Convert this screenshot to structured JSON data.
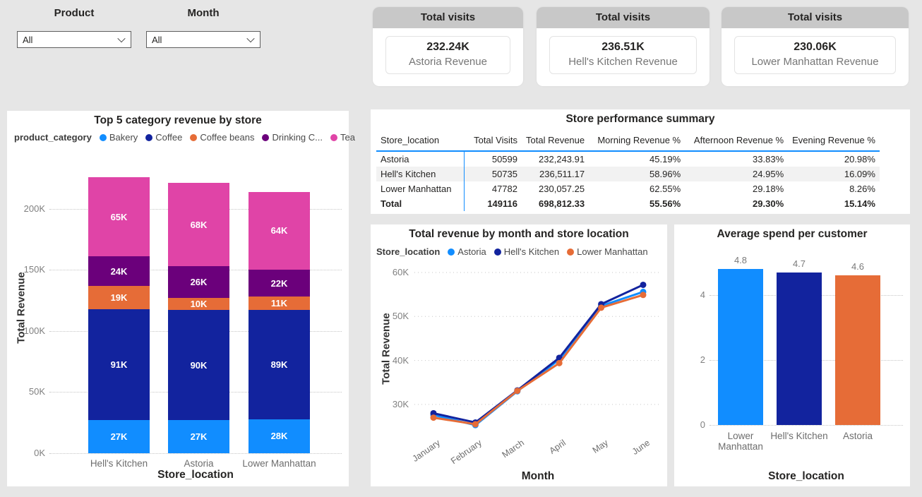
{
  "filters": {
    "product": {
      "label": "Product",
      "value": "All"
    },
    "month": {
      "label": "Month",
      "value": "All"
    }
  },
  "kpi_cards": [
    {
      "header": "Total visits",
      "value": "232.24K",
      "label": "Astoria Revenue"
    },
    {
      "header": "Total visits",
      "value": "236.51K",
      "label": "Hell's Kitchen Revenue"
    },
    {
      "header": "Total visits",
      "value": "230.06K",
      "label": "Lower Manhattan Revenue"
    }
  ],
  "table": {
    "title": "Store performance summary",
    "columns": [
      "Store_location",
      "Total Visits",
      "Total Revenue",
      "Morning Revenue %",
      "Afternoon Revenue %",
      "Evening Revenue %"
    ],
    "rows": [
      [
        "Astoria",
        "50599",
        "232,243.91",
        "45.19%",
        "33.83%",
        "20.98%"
      ],
      [
        "Hell's Kitchen",
        "50735",
        "236,511.17",
        "58.96%",
        "24.95%",
        "16.09%"
      ],
      [
        "Lower Manhattan",
        "47782",
        "230,057.25",
        "62.55%",
        "29.18%",
        "8.26%"
      ]
    ],
    "total_row": [
      "Total",
      "149116",
      "698,812.33",
      "55.56%",
      "29.30%",
      "15.14%"
    ]
  },
  "colors": {
    "canvas_background": "#E6E6E6",
    "panel_background": "#FFFFFF",
    "kpi_header_gray": "#C8C8C8",
    "table_accent_blue": "#118DFF",
    "palette_blue": "#118DFF",
    "palette_navy": "#12239E",
    "palette_orange": "#E66C37",
    "palette_purple": "#6B007B",
    "palette_pink": "#E044A7"
  },
  "chart_data": [
    {
      "id": "category-revenue-stacked-bar",
      "type": "bar",
      "stacked": true,
      "title": "Top 5 category revenue by store",
      "legend_title": "product_category",
      "legend_position": "top",
      "xlabel": "Store_location",
      "ylabel": "Total Revenue",
      "categories": [
        "Hell's Kitchen",
        "Astoria",
        "Lower Manhattan"
      ],
      "series": [
        {
          "name": "Bakery",
          "color": "#118DFF",
          "values_k": [
            27,
            27,
            28
          ]
        },
        {
          "name": "Coffee",
          "color": "#12239E",
          "values_k": [
            91,
            90,
            89
          ]
        },
        {
          "name": "Coffee beans",
          "color": "#E66C37",
          "values_k": [
            19,
            10,
            11
          ]
        },
        {
          "name": "Drinking C...",
          "color": "#6B007B",
          "values_k": [
            24,
            26,
            22
          ]
        },
        {
          "name": "Tea",
          "color": "#E044A7",
          "values_k": [
            65,
            68,
            64
          ]
        }
      ],
      "data_label_suffix": "K",
      "yticks": [
        0,
        50,
        100,
        150,
        200
      ],
      "ytick_suffix": "K",
      "ylim": [
        0,
        238
      ],
      "grid": true
    },
    {
      "id": "revenue-by-month-line",
      "type": "line",
      "title": "Total revenue by month and store location",
      "legend_title": "Store_location",
      "legend_position": "top",
      "xlabel": "Month",
      "ylabel": "Total Revenue",
      "x": [
        "January",
        "February",
        "March",
        "April",
        "May",
        "June"
      ],
      "series": [
        {
          "name": "Astoria",
          "color": "#118DFF",
          "values_k": [
            27.6,
            25.3,
            33.0,
            40.2,
            52.4,
            55.6
          ]
        },
        {
          "name": "Hell's Kitchen",
          "color": "#12239E",
          "values_k": [
            28.0,
            25.9,
            33.2,
            40.6,
            52.8,
            57.2
          ]
        },
        {
          "name": "Lower Manhattan",
          "color": "#E66C37",
          "values_k": [
            27.0,
            25.5,
            33.1,
            39.4,
            52.0,
            54.9
          ]
        }
      ],
      "yticks": [
        30,
        40,
        50,
        60
      ],
      "ytick_suffix": "K",
      "ylim": [
        24,
        61.5
      ],
      "grid": true
    },
    {
      "id": "avg-spend-bar",
      "type": "bar",
      "stacked": false,
      "title": "Average spend per customer",
      "xlabel": "Store_location",
      "ylabel": "",
      "categories": [
        "Lower Manhattan",
        "Hell's Kitchen",
        "Astoria"
      ],
      "values": [
        4.8,
        4.7,
        4.6
      ],
      "data_labels": [
        "4.8",
        "4.7",
        "4.6"
      ],
      "colors": [
        "#118DFF",
        "#12239E",
        "#E66C37"
      ],
      "yticks": [
        0,
        2,
        4
      ],
      "ylim": [
        0,
        4.83
      ],
      "grid": true
    }
  ]
}
